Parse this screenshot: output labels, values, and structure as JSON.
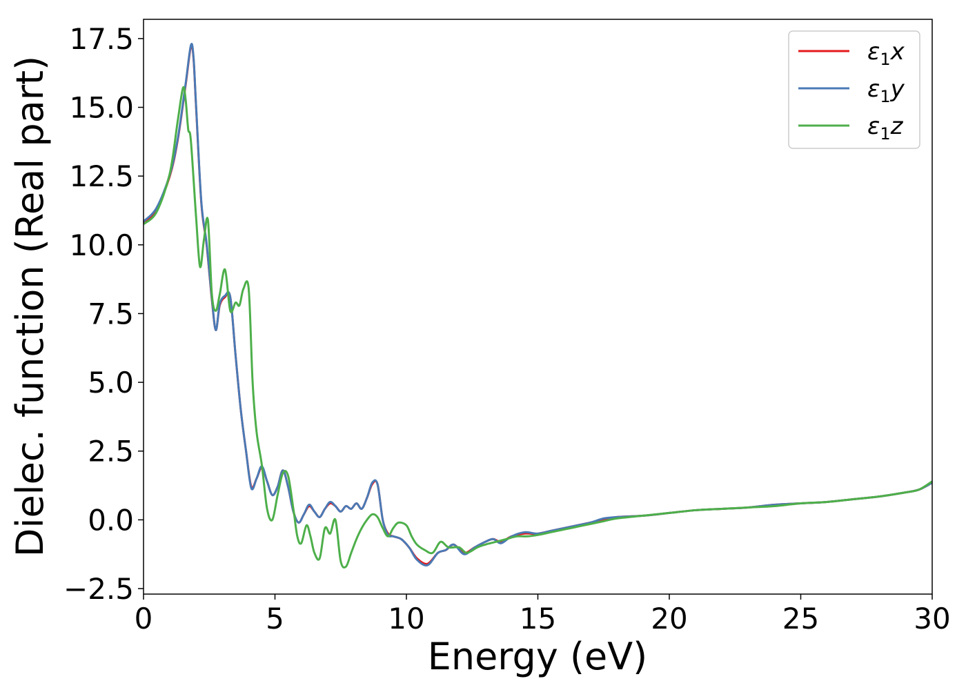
{
  "chart_data": {
    "type": "line",
    "title": "",
    "xlabel": "Energy (eV)",
    "ylabel": "Dielec. function (Real part)",
    "xlim": [
      0,
      30
    ],
    "ylim": [
      -2.7,
      18.2
    ],
    "xticks": [
      0,
      5,
      10,
      15,
      20,
      25,
      30
    ],
    "xtick_labels": [
      "0",
      "5",
      "10",
      "15",
      "20",
      "25",
      "30"
    ],
    "yticks": [
      -2.5,
      0.0,
      2.5,
      5.0,
      7.5,
      10.0,
      12.5,
      15.0,
      17.5
    ],
    "ytick_labels": [
      "−2.5",
      "0.0",
      "2.5",
      "5.0",
      "7.5",
      "10.0",
      "12.5",
      "15.0",
      "17.5"
    ],
    "grid": false,
    "legend_position": "top-right",
    "series": [
      {
        "name": "ε1x",
        "legend_main": "ε",
        "legend_sub": "1",
        "legend_var": "x",
        "color": "#e41a1c",
        "x": [
          0.0,
          0.5,
          1.0,
          1.3,
          1.6,
          1.8,
          1.9,
          2.0,
          2.2,
          2.4,
          2.6,
          2.75,
          2.9,
          3.1,
          3.3,
          3.5,
          3.7,
          3.9,
          4.1,
          4.3,
          4.5,
          4.7,
          4.9,
          5.1,
          5.3,
          5.5,
          5.7,
          5.9,
          6.1,
          6.3,
          6.5,
          6.7,
          6.9,
          7.1,
          7.3,
          7.5,
          7.7,
          7.9,
          8.1,
          8.3,
          8.5,
          8.7,
          8.9,
          9.1,
          9.3,
          9.5,
          9.8,
          10.1,
          10.4,
          10.8,
          11.2,
          11.5,
          11.8,
          12.2,
          12.6,
          13.0,
          13.3,
          13.6,
          14.0,
          14.5,
          15.0,
          15.5,
          16.0,
          16.5,
          17.0,
          17.5,
          18.0,
          19.0,
          20.0,
          21.0,
          22.0,
          23.0,
          24.0,
          25.0,
          26.0,
          27.0,
          28.0,
          29.0,
          29.5,
          30.0
        ],
        "y": [
          10.8,
          11.3,
          12.5,
          13.8,
          15.8,
          17.2,
          16.8,
          15.0,
          11.5,
          10.0,
          8.0,
          6.9,
          7.8,
          8.1,
          8.1,
          6.0,
          4.0,
          2.5,
          1.2,
          1.5,
          1.9,
          1.4,
          0.9,
          1.2,
          1.8,
          1.2,
          0.3,
          -0.1,
          0.2,
          0.5,
          0.3,
          0.1,
          0.4,
          0.6,
          0.5,
          0.3,
          0.5,
          0.4,
          0.6,
          0.4,
          0.8,
          1.3,
          1.3,
          0.0,
          -0.5,
          -0.6,
          -0.7,
          -1.0,
          -1.4,
          -1.6,
          -1.2,
          -1.1,
          -0.9,
          -1.2,
          -1.0,
          -0.8,
          -0.7,
          -0.8,
          -0.6,
          -0.5,
          -0.5,
          -0.4,
          -0.3,
          -0.2,
          -0.1,
          0.0,
          0.1,
          0.15,
          0.25,
          0.35,
          0.4,
          0.45,
          0.55,
          0.6,
          0.65,
          0.75,
          0.85,
          1.0,
          1.1,
          1.35
        ]
      },
      {
        "name": "ε1y",
        "legend_main": "ε",
        "legend_sub": "1",
        "legend_var": "y",
        "color": "#4a7ab5",
        "x": [
          0.0,
          0.5,
          1.0,
          1.3,
          1.6,
          1.8,
          1.9,
          2.0,
          2.2,
          2.4,
          2.6,
          2.75,
          2.9,
          3.1,
          3.3,
          3.5,
          3.7,
          3.9,
          4.1,
          4.3,
          4.5,
          4.7,
          4.9,
          5.1,
          5.3,
          5.5,
          5.7,
          5.9,
          6.1,
          6.3,
          6.5,
          6.7,
          6.9,
          7.1,
          7.3,
          7.5,
          7.7,
          7.9,
          8.1,
          8.3,
          8.5,
          8.7,
          8.9,
          9.1,
          9.3,
          9.5,
          9.8,
          10.1,
          10.4,
          10.8,
          11.2,
          11.5,
          11.8,
          12.2,
          12.6,
          13.0,
          13.3,
          13.6,
          14.0,
          14.5,
          15.0,
          15.5,
          16.0,
          16.5,
          17.0,
          17.5,
          18.0,
          19.0,
          20.0,
          21.0,
          22.0,
          23.0,
          24.0,
          25.0,
          26.0,
          27.0,
          28.0,
          29.0,
          29.5,
          30.0
        ],
        "y": [
          10.85,
          11.35,
          12.55,
          13.85,
          15.85,
          17.25,
          16.85,
          15.05,
          11.55,
          10.05,
          8.05,
          6.9,
          7.85,
          8.15,
          8.1,
          6.0,
          4.0,
          2.5,
          1.15,
          1.5,
          1.95,
          1.4,
          0.9,
          1.2,
          1.8,
          1.2,
          0.3,
          -0.1,
          0.2,
          0.55,
          0.3,
          0.1,
          0.4,
          0.65,
          0.5,
          0.3,
          0.5,
          0.4,
          0.6,
          0.4,
          0.8,
          1.35,
          1.3,
          0.0,
          -0.55,
          -0.6,
          -0.7,
          -1.0,
          -1.45,
          -1.65,
          -1.2,
          -1.1,
          -0.9,
          -1.25,
          -1.0,
          -0.8,
          -0.7,
          -0.85,
          -0.6,
          -0.45,
          -0.5,
          -0.4,
          -0.3,
          -0.2,
          -0.1,
          0.05,
          0.1,
          0.15,
          0.25,
          0.35,
          0.4,
          0.45,
          0.55,
          0.6,
          0.65,
          0.75,
          0.85,
          1.0,
          1.1,
          1.35
        ]
      },
      {
        "name": "ε1z",
        "legend_main": "ε",
        "legend_sub": "1",
        "legend_var": "z",
        "color": "#4daf4a",
        "x": [
          0.0,
          0.5,
          1.0,
          1.3,
          1.5,
          1.6,
          1.7,
          1.8,
          2.0,
          2.15,
          2.3,
          2.45,
          2.6,
          2.75,
          2.9,
          3.1,
          3.3,
          3.5,
          3.65,
          3.8,
          4.0,
          4.15,
          4.3,
          4.5,
          4.7,
          4.9,
          5.1,
          5.3,
          5.5,
          5.7,
          5.85,
          6.0,
          6.2,
          6.35,
          6.5,
          6.7,
          6.9,
          7.1,
          7.3,
          7.5,
          7.7,
          7.9,
          8.1,
          8.3,
          8.5,
          8.7,
          8.9,
          9.1,
          9.3,
          9.5,
          9.7,
          10.0,
          10.2,
          10.4,
          10.7,
          11.0,
          11.3,
          11.6,
          12.0,
          12.3,
          12.7,
          13.0,
          13.4,
          13.8,
          14.2,
          14.6,
          15.0,
          15.5,
          16.0,
          16.5,
          17.0,
          17.5,
          18.0,
          19.0,
          20.0,
          21.0,
          22.0,
          23.0,
          24.0,
          25.0,
          26.0,
          27.0,
          28.0,
          29.0,
          29.5,
          30.0
        ],
        "y": [
          10.75,
          11.2,
          12.6,
          14.5,
          15.7,
          15.3,
          14.2,
          13.8,
          11.0,
          9.2,
          10.2,
          10.9,
          8.2,
          7.6,
          8.2,
          9.1,
          7.6,
          7.9,
          7.8,
          8.4,
          8.4,
          5.0,
          3.2,
          2.0,
          0.4,
          0.0,
          0.9,
          1.7,
          1.6,
          0.4,
          -0.6,
          -0.85,
          -0.2,
          -0.6,
          -1.2,
          -1.4,
          -0.3,
          -0.5,
          0.0,
          -1.5,
          -1.7,
          -1.2,
          -0.7,
          -0.3,
          0.0,
          0.2,
          0.1,
          -0.3,
          -0.6,
          -0.3,
          -0.1,
          -0.2,
          -0.6,
          -0.9,
          -1.1,
          -1.2,
          -0.8,
          -1.0,
          -1.0,
          -1.2,
          -1.0,
          -0.9,
          -0.8,
          -0.7,
          -0.6,
          -0.6,
          -0.55,
          -0.45,
          -0.35,
          -0.25,
          -0.15,
          -0.05,
          0.05,
          0.15,
          0.25,
          0.35,
          0.4,
          0.45,
          0.5,
          0.6,
          0.65,
          0.75,
          0.85,
          1.0,
          1.1,
          1.4
        ]
      }
    ]
  }
}
